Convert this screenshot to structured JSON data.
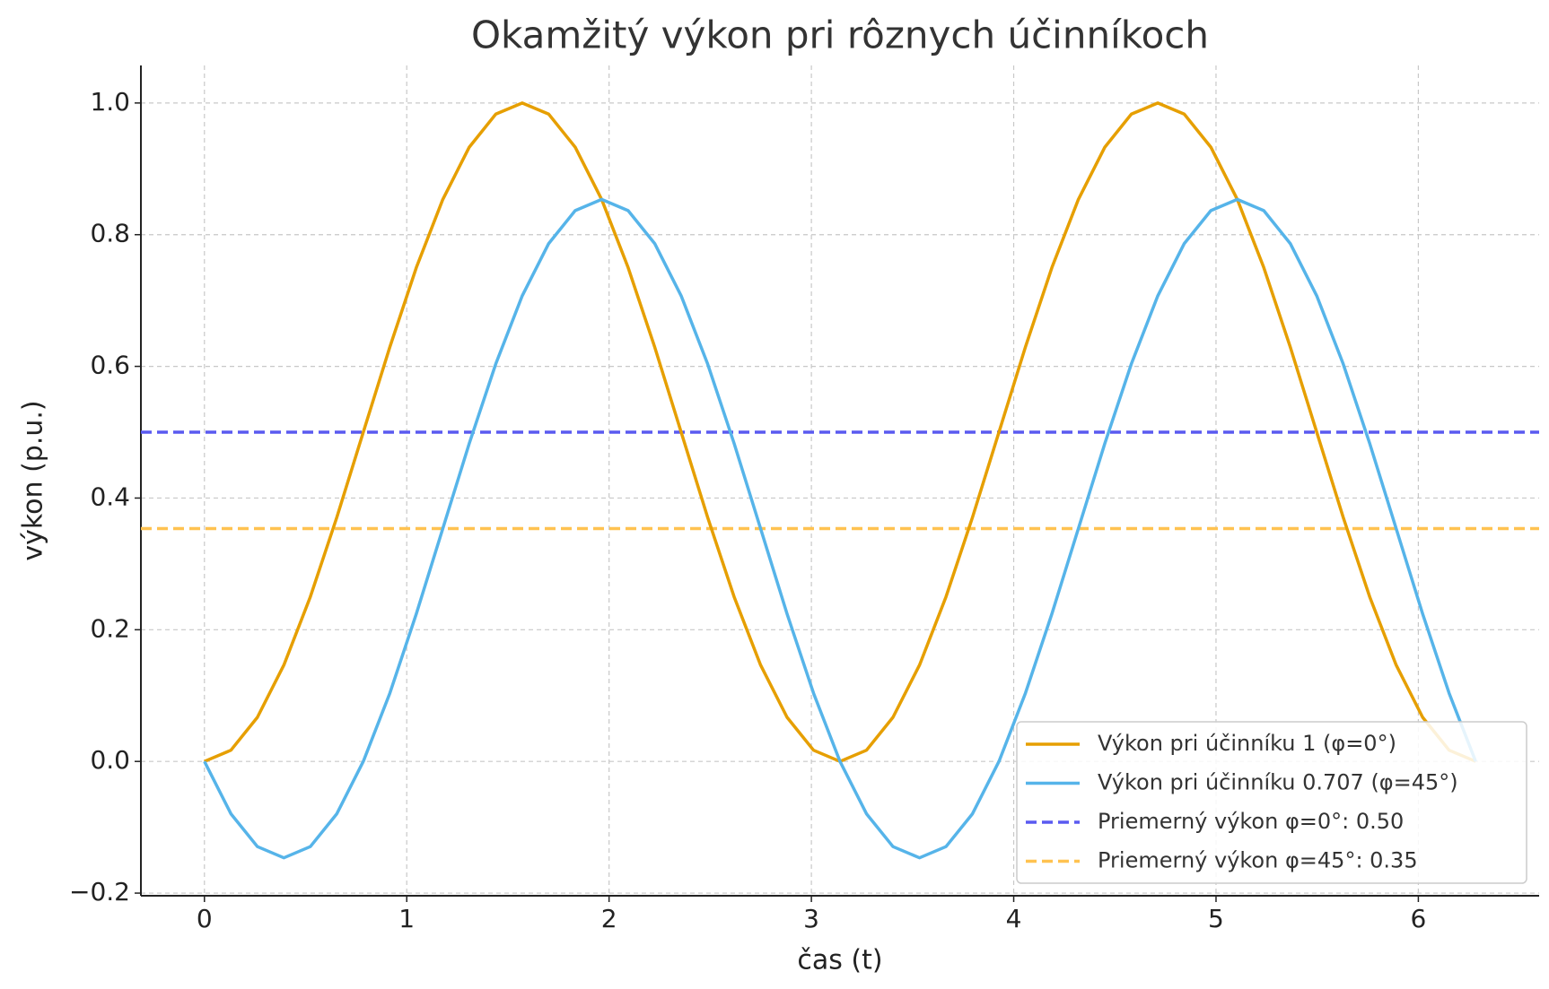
{
  "chart_data": {
    "type": "line",
    "title": "Okamžitý výkon pri rôznych účinníkoch",
    "xlabel": "čas (t)",
    "ylabel": "výkon (p.u.)",
    "x": [
      0,
      0.1309,
      0.2618,
      0.3927,
      0.5236,
      0.6545,
      0.7854,
      0.9163,
      1.0472,
      1.1781,
      1.309,
      1.4399,
      1.5708,
      1.7017,
      1.8326,
      1.9635,
      2.0944,
      2.2253,
      2.3562,
      2.4871,
      2.618,
      2.7489,
      2.8798,
      3.0107,
      3.1416,
      3.2725,
      3.4034,
      3.5343,
      3.6652,
      3.7961,
      3.927,
      4.0579,
      4.1888,
      4.3197,
      4.4506,
      4.5815,
      4.7124,
      4.8433,
      4.9742,
      5.1051,
      5.236,
      5.3669,
      5.4978,
      5.6287,
      5.7596,
      5.8905,
      6.0214,
      6.1523,
      6.2832
    ],
    "series": [
      {
        "name": "Výkon pri účinníku 1 (φ=0°)",
        "color": "#E69F00",
        "values": [
          0,
          0.017,
          0.067,
          0.1464,
          0.25,
          0.3706,
          0.5,
          0.6294,
          0.75,
          0.8536,
          0.933,
          0.983,
          1,
          0.983,
          0.933,
          0.8536,
          0.75,
          0.6294,
          0.5,
          0.3706,
          0.25,
          0.1464,
          0.067,
          0.017,
          0,
          0.017,
          0.067,
          0.1464,
          0.25,
          0.3706,
          0.5,
          0.6294,
          0.75,
          0.8536,
          0.933,
          0.983,
          1,
          0.983,
          0.933,
          0.8536,
          0.75,
          0.6294,
          0.5,
          0.3706,
          0.25,
          0.1464,
          0.067,
          0.017,
          0
        ]
      },
      {
        "name": "Výkon pri účinníku 0.707 (φ=45°)",
        "color": "#56B4E9",
        "values": [
          0,
          -0.0795,
          -0.1294,
          -0.1464,
          -0.1294,
          -0.0795,
          0,
          0.1036,
          0.2241,
          0.3536,
          0.483,
          0.6036,
          0.7071,
          0.7866,
          0.8365,
          0.8536,
          0.8365,
          0.7866,
          0.7071,
          0.6036,
          0.483,
          0.3536,
          0.2241,
          0.1036,
          0,
          -0.0795,
          -0.1294,
          -0.1464,
          -0.1294,
          -0.0795,
          0,
          0.1036,
          0.2241,
          0.3536,
          0.483,
          0.6036,
          0.7071,
          0.7866,
          0.8365,
          0.8536,
          0.8365,
          0.7866,
          0.7071,
          0.6036,
          0.483,
          0.3536,
          0.2241,
          0.1036,
          0
        ]
      }
    ],
    "hlines": [
      {
        "name": "Priemerný výkon φ=0°: 0.50",
        "color": "#5a5af0",
        "value": 0.5
      },
      {
        "name": "Priemerný výkon φ=45°: 0.35",
        "color": "#ffc250",
        "value": 0.3536
      }
    ],
    "xlim": [
      -0.314,
      6.597
    ],
    "ylim": [
      -0.204,
      1.057
    ],
    "xticks": [
      0,
      1,
      2,
      3,
      4,
      5,
      6
    ],
    "yticks": [
      {
        "value": -0.2,
        "label": "−0.2"
      },
      {
        "value": 0,
        "label": "0.0"
      },
      0.2,
      0.4,
      0.6,
      0.8,
      {
        "value": 1,
        "label": "1.0"
      }
    ],
    "grid": true,
    "legend": "lower right"
  }
}
